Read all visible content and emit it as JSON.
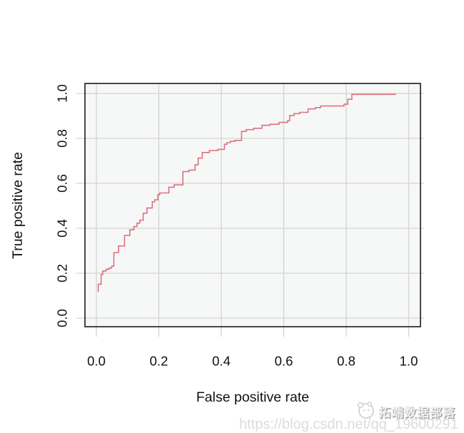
{
  "page": {
    "background": "#ffffff"
  },
  "watermark": {
    "brand_text": "拓端数据部落",
    "url_text": "https://blog.csdn.net/qq_19600291"
  },
  "chart_data": {
    "type": "line",
    "subtype": "roc-step-curve",
    "title": "",
    "xlabel": "False positive rate",
    "ylabel": "True positive rate",
    "xlim": [
      0.0,
      1.0
    ],
    "ylim": [
      0.0,
      1.0
    ],
    "x_ticks": [
      "0.0",
      "0.2",
      "0.4",
      "0.6",
      "0.8",
      "1.0"
    ],
    "y_ticks": [
      "0.0",
      "0.2",
      "0.4",
      "0.6",
      "0.8",
      "1.0"
    ],
    "grid": true,
    "legend": "none",
    "line_color": "#E0707F",
    "grid_color": "#D3D3D3",
    "plot_bg": "#F6F8F7",
    "frame_color": "#1B1B1B",
    "points": [
      [
        0.006,
        0.117
      ],
      [
        0.006,
        0.151
      ],
      [
        0.015,
        0.151
      ],
      [
        0.015,
        0.194
      ],
      [
        0.02,
        0.194
      ],
      [
        0.02,
        0.21
      ],
      [
        0.031,
        0.21
      ],
      [
        0.031,
        0.217
      ],
      [
        0.04,
        0.217
      ],
      [
        0.04,
        0.223
      ],
      [
        0.049,
        0.223
      ],
      [
        0.049,
        0.231
      ],
      [
        0.056,
        0.231
      ],
      [
        0.056,
        0.292
      ],
      [
        0.071,
        0.292
      ],
      [
        0.071,
        0.321
      ],
      [
        0.09,
        0.321
      ],
      [
        0.09,
        0.368
      ],
      [
        0.107,
        0.368
      ],
      [
        0.107,
        0.393
      ],
      [
        0.12,
        0.393
      ],
      [
        0.12,
        0.408
      ],
      [
        0.13,
        0.408
      ],
      [
        0.13,
        0.423
      ],
      [
        0.139,
        0.423
      ],
      [
        0.139,
        0.436
      ],
      [
        0.15,
        0.436
      ],
      [
        0.15,
        0.467
      ],
      [
        0.162,
        0.467
      ],
      [
        0.162,
        0.49
      ],
      [
        0.179,
        0.49
      ],
      [
        0.179,
        0.518
      ],
      [
        0.187,
        0.518
      ],
      [
        0.187,
        0.527
      ],
      [
        0.197,
        0.527
      ],
      [
        0.197,
        0.55
      ],
      [
        0.203,
        0.55
      ],
      [
        0.203,
        0.557
      ],
      [
        0.232,
        0.557
      ],
      [
        0.232,
        0.583
      ],
      [
        0.249,
        0.583
      ],
      [
        0.249,
        0.593
      ],
      [
        0.277,
        0.593
      ],
      [
        0.277,
        0.652
      ],
      [
        0.297,
        0.652
      ],
      [
        0.297,
        0.659
      ],
      [
        0.316,
        0.659
      ],
      [
        0.316,
        0.683
      ],
      [
        0.326,
        0.683
      ],
      [
        0.326,
        0.712
      ],
      [
        0.339,
        0.712
      ],
      [
        0.339,
        0.737
      ],
      [
        0.362,
        0.737
      ],
      [
        0.362,
        0.746
      ],
      [
        0.389,
        0.746
      ],
      [
        0.389,
        0.751
      ],
      [
        0.41,
        0.751
      ],
      [
        0.41,
        0.774
      ],
      [
        0.418,
        0.774
      ],
      [
        0.418,
        0.781
      ],
      [
        0.429,
        0.781
      ],
      [
        0.429,
        0.787
      ],
      [
        0.443,
        0.787
      ],
      [
        0.443,
        0.791
      ],
      [
        0.465,
        0.791
      ],
      [
        0.465,
        0.831
      ],
      [
        0.48,
        0.831
      ],
      [
        0.48,
        0.839
      ],
      [
        0.504,
        0.839
      ],
      [
        0.504,
        0.845
      ],
      [
        0.53,
        0.845
      ],
      [
        0.53,
        0.858
      ],
      [
        0.556,
        0.858
      ],
      [
        0.556,
        0.863
      ],
      [
        0.585,
        0.863
      ],
      [
        0.585,
        0.871
      ],
      [
        0.612,
        0.871
      ],
      [
        0.612,
        0.878
      ],
      [
        0.619,
        0.878
      ],
      [
        0.619,
        0.902
      ],
      [
        0.633,
        0.902
      ],
      [
        0.633,
        0.91
      ],
      [
        0.651,
        0.91
      ],
      [
        0.651,
        0.916
      ],
      [
        0.678,
        0.916
      ],
      [
        0.678,
        0.931
      ],
      [
        0.701,
        0.931
      ],
      [
        0.701,
        0.937
      ],
      [
        0.718,
        0.937
      ],
      [
        0.718,
        0.944
      ],
      [
        0.793,
        0.944
      ],
      [
        0.793,
        0.952
      ],
      [
        0.805,
        0.952
      ],
      [
        0.805,
        0.974
      ],
      [
        0.818,
        0.974
      ],
      [
        0.818,
        0.996
      ],
      [
        0.957,
        0.996
      ],
      [
        0.957,
        1.0
      ]
    ]
  }
}
